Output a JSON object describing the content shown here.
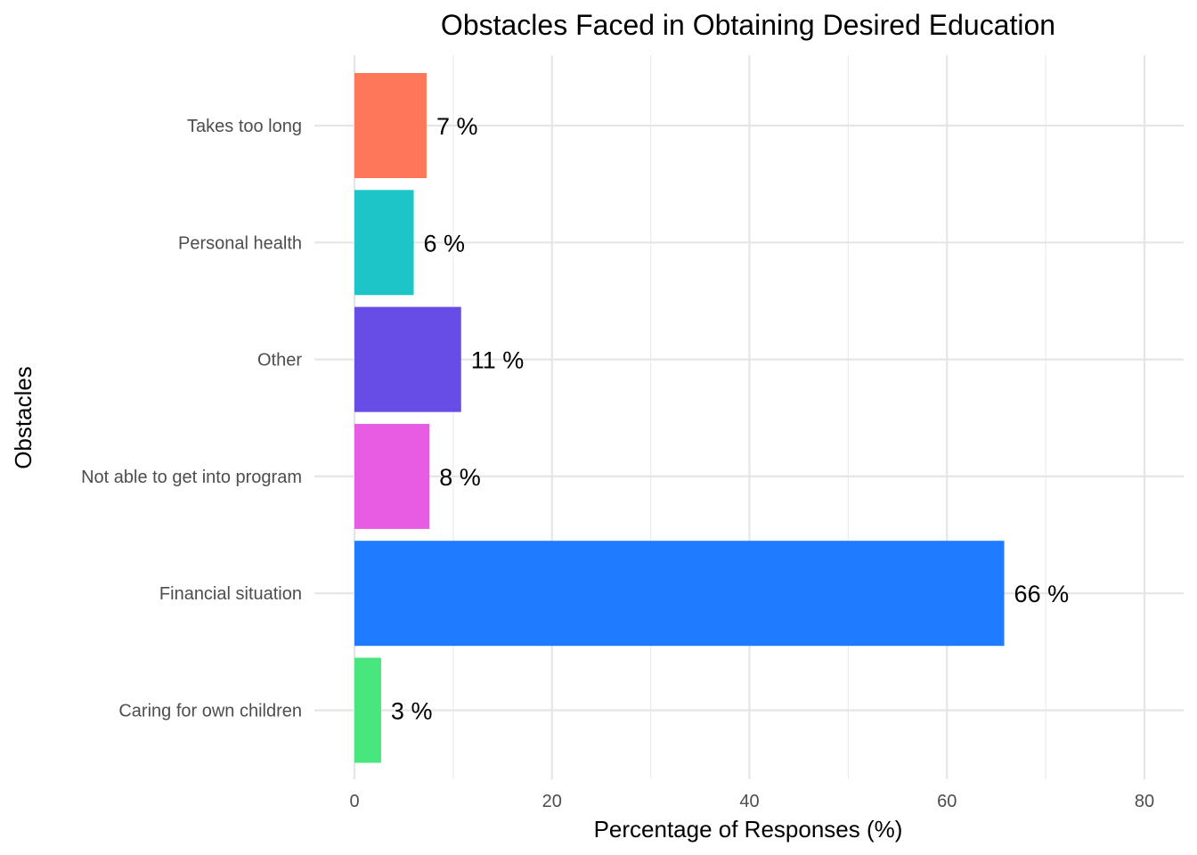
{
  "chart_data": {
    "type": "bar",
    "orientation": "horizontal",
    "title": "Obstacles Faced in Obtaining Desired Education",
    "xlabel": "Percentage of Responses (%)",
    "ylabel": "Obstacles",
    "xlim": [
      0,
      80
    ],
    "x_ticks": [
      0,
      20,
      40,
      60,
      80
    ],
    "grid": true,
    "legend": "none",
    "categories": [
      "Caring for own children",
      "Financial situation",
      "Not able to get into program",
      "Other",
      "Personal health",
      "Takes too long"
    ],
    "values": [
      2.7,
      65.8,
      7.6,
      10.8,
      6.0,
      7.3
    ],
    "value_labels": [
      "3 %",
      "66 %",
      "8 %",
      "11 %",
      "6 %",
      "7 %"
    ],
    "colors": [
      "#48E77E",
      "#1F7BFF",
      "#E65CE2",
      "#674CE6",
      "#1DC5C9",
      "#FF775B"
    ]
  }
}
